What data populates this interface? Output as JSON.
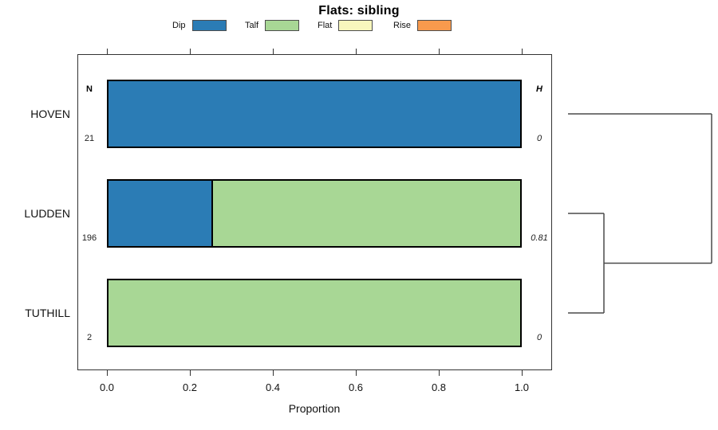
{
  "chart_data": {
    "type": "bar",
    "orientation": "horizontal-stacked",
    "title": "Flats: sibling",
    "xlabel": "Proportion",
    "xlim": [
      0,
      1
    ],
    "xticks": [
      "0.0",
      "0.2",
      "0.4",
      "0.6",
      "0.8",
      "1.0"
    ],
    "grid": false,
    "legend_position": "top",
    "categories": [
      "HOVEN",
      "LUDDEN",
      "TUTHILL"
    ],
    "series": [
      {
        "name": "Dip",
        "color": "#2b7cb5",
        "values": [
          1.0,
          0.25,
          0
        ]
      },
      {
        "name": "Talf",
        "color": "#a8d795",
        "values": [
          0,
          0.75,
          1.0
        ]
      },
      {
        "name": "Flat",
        "color": "#f8f7bd",
        "values": [
          0,
          0,
          0
        ]
      },
      {
        "name": "Rise",
        "color": "#f89a4d",
        "values": [
          0,
          0,
          0
        ]
      }
    ],
    "n_header": "N",
    "n_values": [
      "21",
      "196",
      "2"
    ],
    "h_header": "H",
    "h_values": [
      "0",
      "0.81",
      "0"
    ],
    "dendrogram": {
      "leaf_order": [
        "HOVEN",
        "LUDDEN",
        "TUTHILL"
      ],
      "merge_pairs": [
        [
          1,
          2
        ],
        [
          0,
          3
        ]
      ],
      "heights": [
        0.25,
        1.0
      ],
      "line_color": "#4a4a4a"
    }
  }
}
